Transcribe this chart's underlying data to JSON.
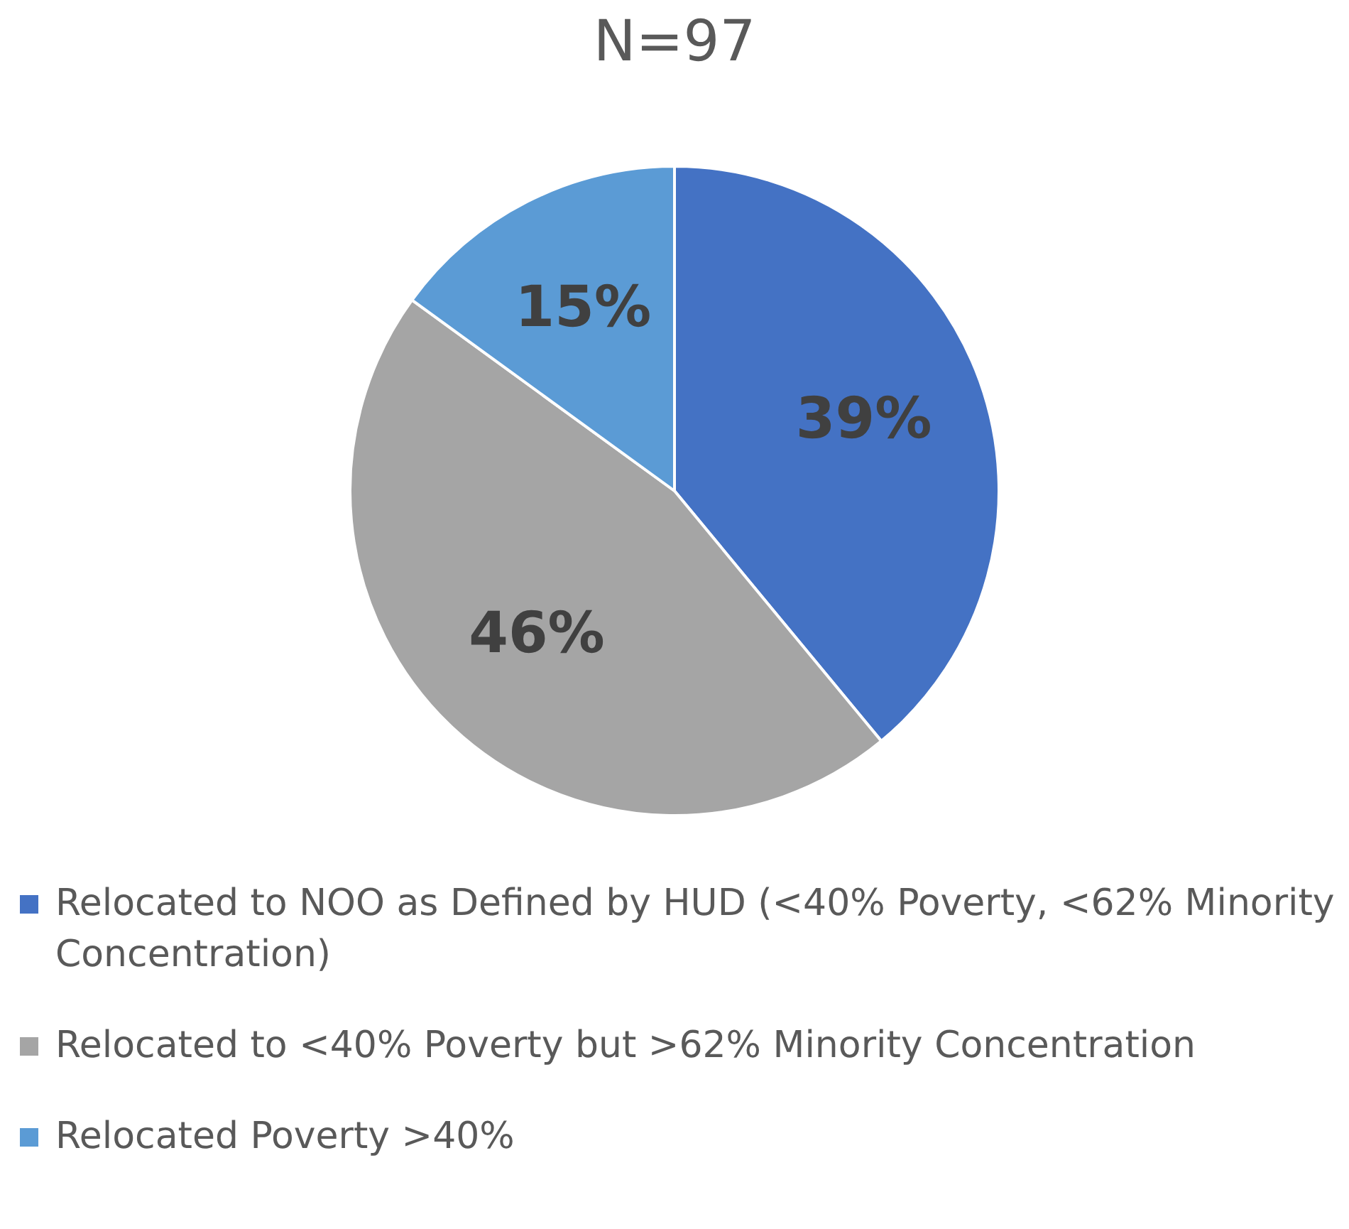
{
  "chart_data": {
    "type": "pie",
    "title": "N=97",
    "categories": [
      "Relocated to NOO as Defined by HUD (<40% Poverty, <62% Minority Concentration)",
      "Relocated to <40% Poverty but >62% Minority Concentration",
      "Relocated Poverty >40%"
    ],
    "values": [
      39,
      46,
      15
    ],
    "colors": [
      "#4472c4",
      "#a5a5a5",
      "#5b9bd5"
    ],
    "value_labels": [
      "39%",
      "46%",
      "15%"
    ],
    "legend": "bottom"
  }
}
